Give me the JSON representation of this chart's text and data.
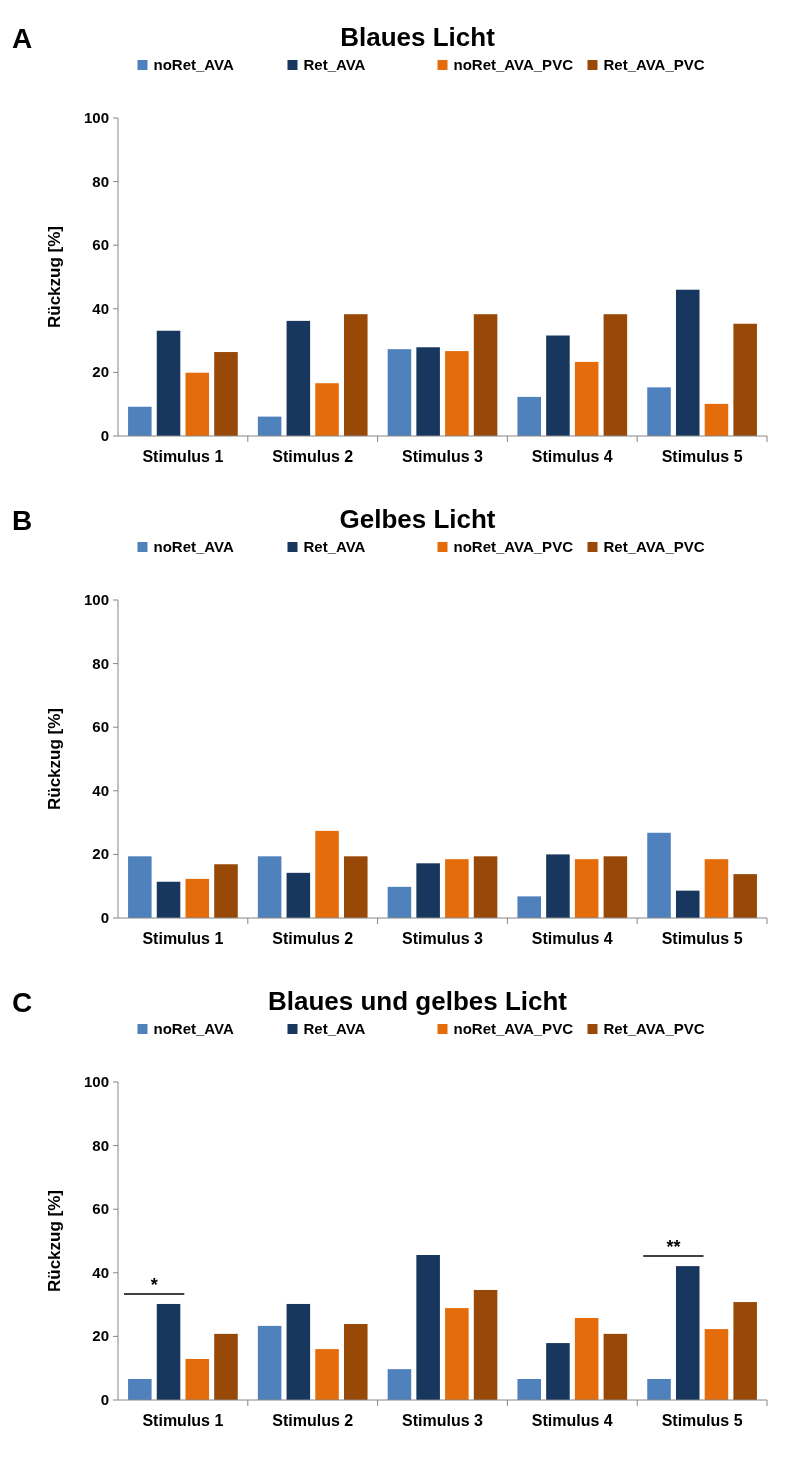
{
  "chart_data": [
    {
      "type": "bar",
      "title": "Blaues Licht",
      "ylabel": "Rückzug [%]",
      "annotations": [
        "A"
      ],
      "legend": "top",
      "categories": [
        "Stimulus 1",
        "Stimulus 2",
        "Stimulus 3",
        "Stimulus 4",
        "Stimulus 5"
      ],
      "ylim": [
        0,
        100
      ],
      "yticks": [
        0,
        20,
        40,
        60,
        80,
        100
      ],
      "series": [
        {
          "name": "noRet_AVA",
          "color": "#4f81bd",
          "values": [
            9.2,
            6.1,
            27.3,
            12.3,
            15.3
          ]
        },
        {
          "name": "Ret_AVA",
          "color": "#17375e",
          "values": [
            33.1,
            36.2,
            27.9,
            31.6,
            46
          ]
        },
        {
          "name": "noRet_AVA_PVC",
          "color": "#e46c0a",
          "values": [
            19.9,
            16.6,
            26.7,
            23.3,
            10.1
          ]
        },
        {
          "name": "Ret_AVA_PVC",
          "color": "#984807",
          "values": [
            26.4,
            38.3,
            38.3,
            38.3,
            35.3
          ]
        }
      ]
    },
    {
      "type": "bar",
      "title": "Gelbes Licht",
      "ylabel": "Rückzug [%]",
      "annotations": [
        "B"
      ],
      "legend": "top",
      "categories": [
        "Stimulus 1",
        "Stimulus 2",
        "Stimulus 3",
        "Stimulus 4",
        "Stimulus 5"
      ],
      "ylim": [
        0,
        100
      ],
      "yticks": [
        0,
        20,
        40,
        60,
        80,
        100
      ],
      "series": [
        {
          "name": "noRet_AVA",
          "color": "#4f81bd",
          "values": [
            19.4,
            19.4,
            9.8,
            6.8,
            26.8
          ]
        },
        {
          "name": "Ret_AVA",
          "color": "#17375e",
          "values": [
            11.4,
            14.2,
            17.2,
            20,
            8.6
          ]
        },
        {
          "name": "noRet_AVA_PVC",
          "color": "#e46c0a",
          "values": [
            12.3,
            27.4,
            18.5,
            18.5,
            18.5
          ]
        },
        {
          "name": "Ret_AVA_PVC",
          "color": "#984807",
          "values": [
            16.9,
            19.4,
            19.4,
            19.4,
            13.8
          ]
        }
      ]
    },
    {
      "type": "bar",
      "title": "Blaues und gelbes Licht",
      "ylabel": "Rückzug [%]",
      "annotations": [
        "C",
        "*",
        "**"
      ],
      "legend": "top",
      "categories": [
        "Stimulus 1",
        "Stimulus 2",
        "Stimulus 3",
        "Stimulus 4",
        "Stimulus 5"
      ],
      "ylim": [
        0,
        100
      ],
      "yticks": [
        0,
        20,
        40,
        60,
        80,
        100
      ],
      "series": [
        {
          "name": "noRet_AVA",
          "color": "#4f81bd",
          "values": [
            6.6,
            23.3,
            9.7,
            6.6,
            6.6
          ]
        },
        {
          "name": "Ret_AVA",
          "color": "#17375e",
          "values": [
            30.2,
            30.2,
            45.6,
            17.9,
            42.1
          ]
        },
        {
          "name": "noRet_AVA_PVC",
          "color": "#e46c0a",
          "values": [
            12.9,
            16,
            28.9,
            25.8,
            22.3
          ]
        },
        {
          "name": "Ret_AVA_PVC",
          "color": "#984807",
          "values": [
            20.8,
            23.9,
            34.6,
            20.8,
            30.8
          ]
        }
      ]
    }
  ]
}
